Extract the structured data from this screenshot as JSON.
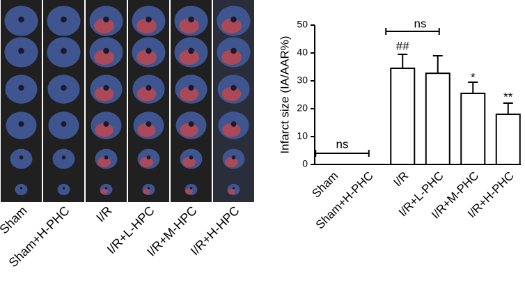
{
  "photo_panel": {
    "labels": [
      "Sham",
      "Sham+H-PHC",
      "I/R",
      "I/R+L-HPC",
      "I/R+M-HPC",
      "I/R+H-HPC"
    ]
  },
  "chart_data": {
    "type": "bar",
    "y_label": "Infarct size (IA/AAR%)",
    "categories": [
      "Sham",
      "Sham+H-PHC",
      "I/R",
      "I/R+L-PHC",
      "I/R+M-PHC",
      "I/R+H-PHC"
    ],
    "values": [
      0,
      0,
      34.5,
      32.7,
      25.5,
      18
    ],
    "errors": [
      0,
      0,
      5,
      6.3,
      4,
      4
    ],
    "color": "#ffffff",
    "ylim": [
      0,
      50
    ],
    "yticks": [
      0,
      10,
      20,
      30,
      40,
      50
    ],
    "annotations": [
      "ns",
      "ns",
      "##",
      "*",
      "**"
    ]
  }
}
